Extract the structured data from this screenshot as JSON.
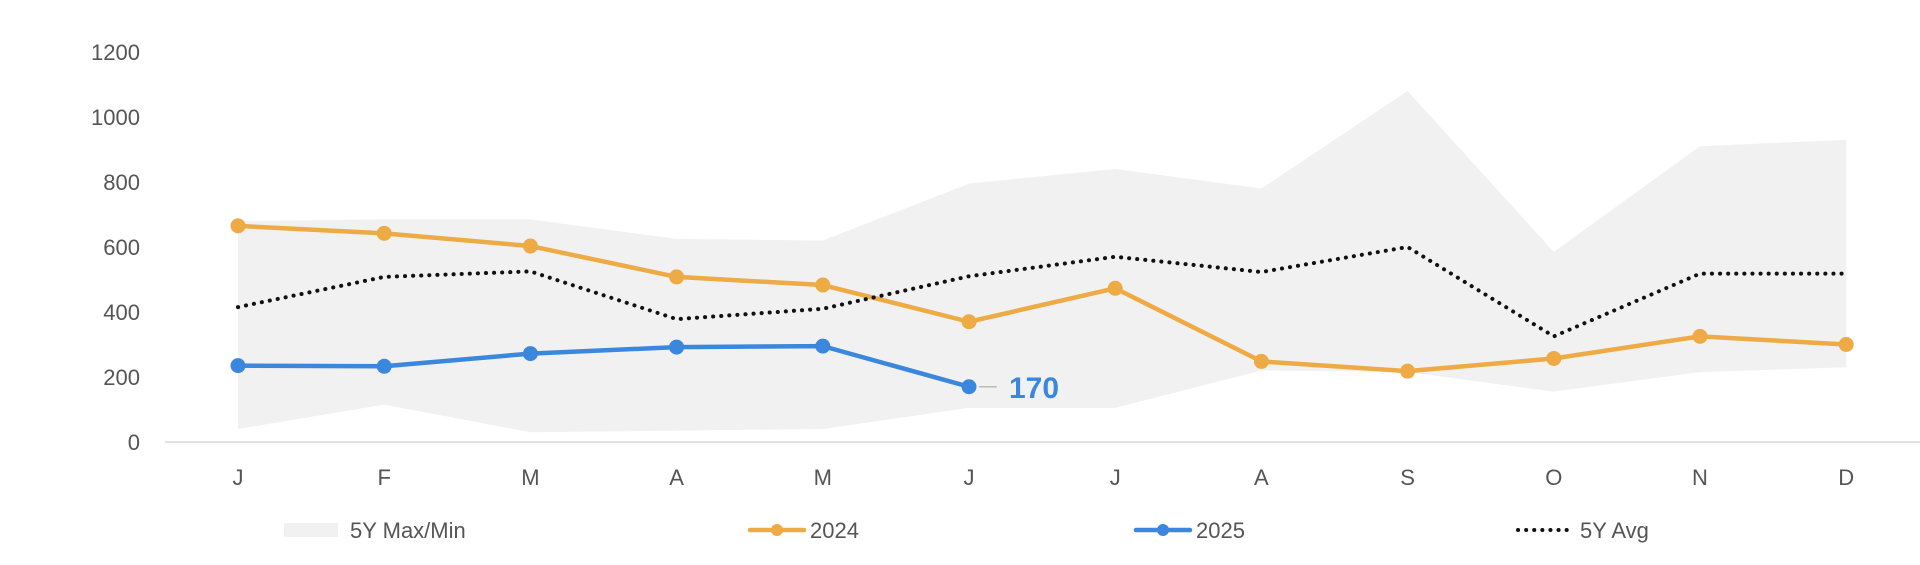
{
  "chart_data": {
    "type": "line",
    "title": "",
    "xlabel": "",
    "ylabel": "",
    "categories": [
      "J",
      "F",
      "M",
      "A",
      "M",
      "J",
      "J",
      "A",
      "S",
      "O",
      "N",
      "D"
    ],
    "ylim": [
      0,
      1200
    ],
    "yticks": [
      0,
      200,
      400,
      600,
      800,
      1000,
      1200
    ],
    "grid": false,
    "legend_position": "bottom",
    "range_band": {
      "name": "5Y Max/Min",
      "max": [
        680,
        685,
        685,
        625,
        620,
        795,
        840,
        780,
        1080,
        585,
        910,
        930
      ],
      "min": [
        40,
        115,
        30,
        35,
        40,
        105,
        105,
        220,
        215,
        155,
        215,
        230
      ],
      "color": "#f1f1f1"
    },
    "series": [
      {
        "name": "2024",
        "values": [
          665,
          642,
          603,
          508,
          483,
          370,
          473,
          248,
          218,
          257,
          325,
          300
        ],
        "color": "#eeaa44",
        "style": "solid-markers"
      },
      {
        "name": "2025",
        "values": [
          235,
          233,
          272,
          292,
          295,
          170,
          null,
          null,
          null,
          null,
          null,
          null
        ],
        "color": "#3a87dd",
        "style": "solid-markers"
      },
      {
        "name": "5Y Avg",
        "values": [
          415,
          508,
          525,
          378,
          410,
          510,
          570,
          523,
          600,
          325,
          518,
          518
        ],
        "color": "#111111",
        "style": "dotted"
      }
    ],
    "annotations": [
      {
        "series": "2025",
        "text": "170"
      }
    ]
  }
}
